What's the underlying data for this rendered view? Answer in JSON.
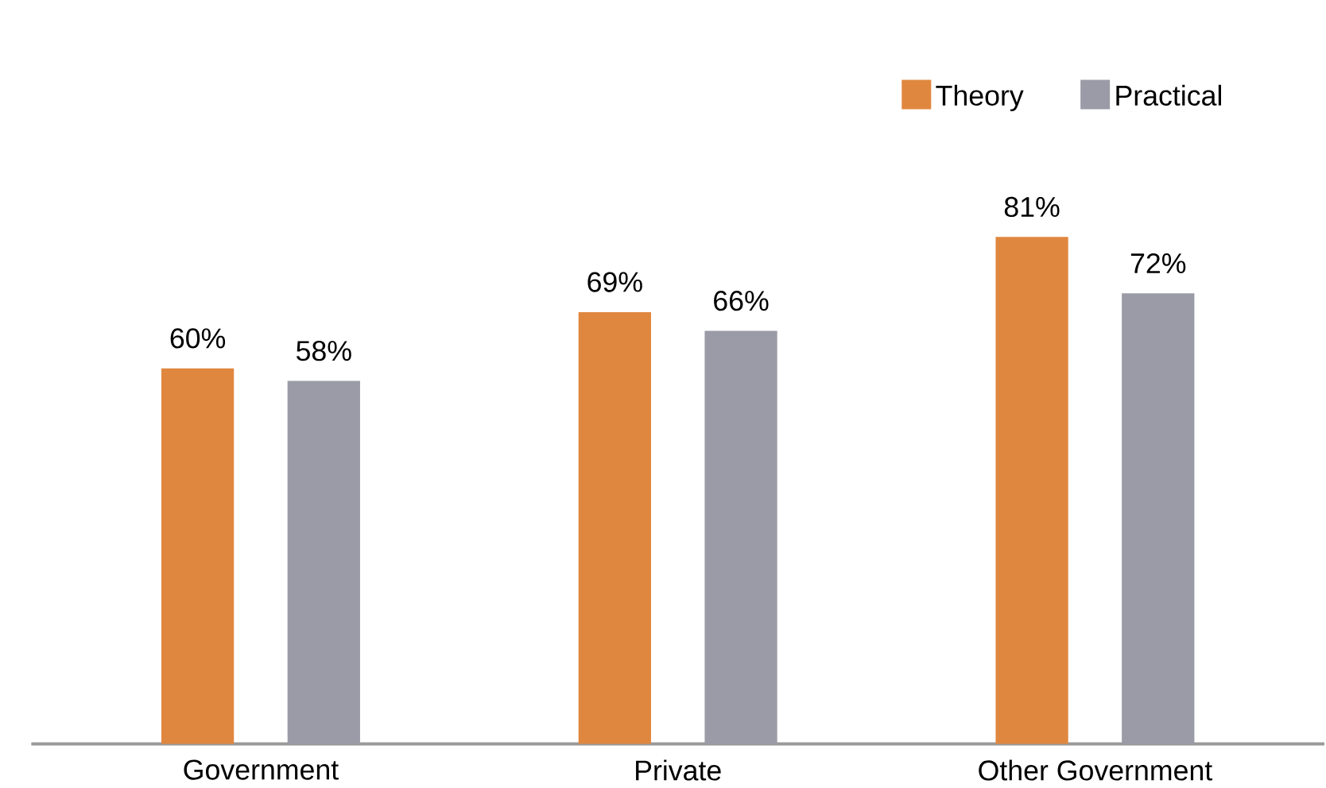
{
  "chart_data": {
    "type": "bar",
    "categories": [
      "Government",
      "Private",
      "Other Government"
    ],
    "series": [
      {
        "name": "Theory",
        "color": "#e0873f",
        "values": [
          60,
          69,
          81
        ],
        "value_labels": [
          "60%",
          "69%",
          "81%"
        ]
      },
      {
        "name": "Practical",
        "color": "#9a9ba6",
        "values": [
          58,
          66,
          72
        ],
        "value_labels": [
          "58%",
          "66%",
          "72%"
        ]
      }
    ],
    "legend": "top right"
  }
}
